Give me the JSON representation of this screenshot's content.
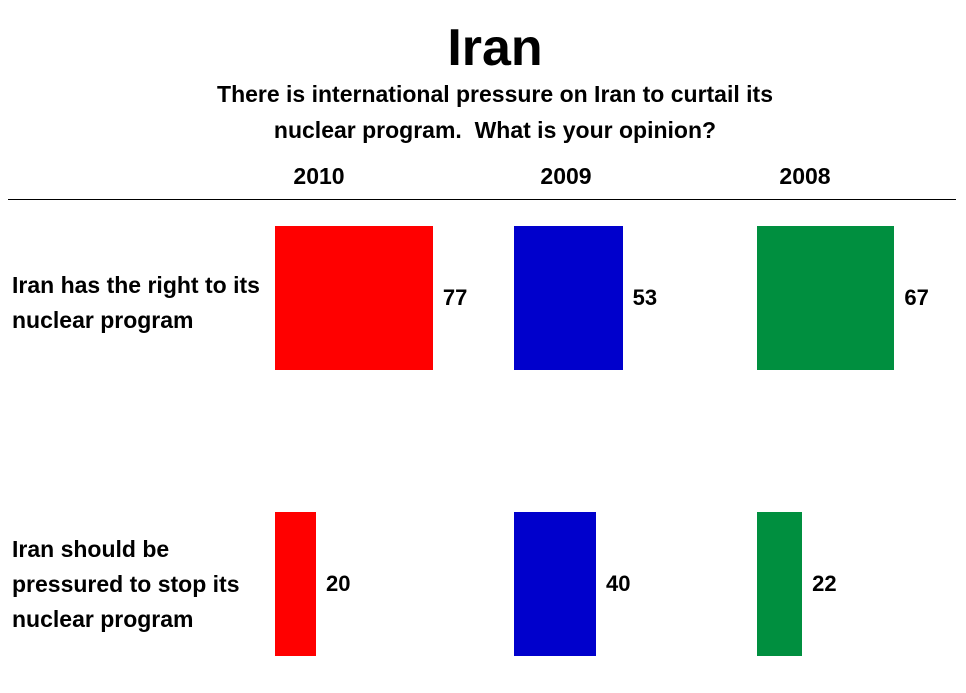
{
  "chart_data": {
    "type": "bar",
    "orientation": "horizontal",
    "title": "Iran",
    "subtitle": "There is international pressure on Iran to curtail its nuclear program.  What is your opinion?",
    "categories": [
      "Iran has the right to its nuclear program",
      "Iran should be pressured to stop its nuclear program"
    ],
    "series": [
      {
        "name": "2010",
        "color": "#ff0000",
        "values": [
          77,
          20
        ]
      },
      {
        "name": "2009",
        "color": "#0000cc",
        "values": [
          53,
          40
        ]
      },
      {
        "name": "2008",
        "color": "#008f3f",
        "values": [
          67,
          22
        ]
      }
    ]
  }
}
